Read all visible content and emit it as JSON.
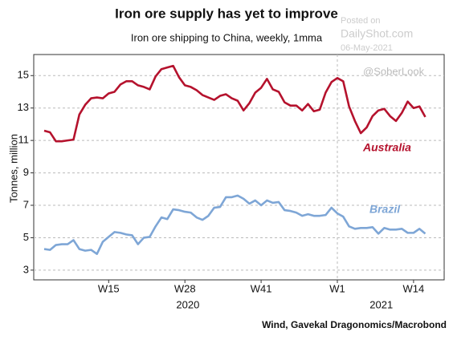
{
  "chart_data": {
    "type": "line",
    "title": "Iron ore supply has yet to improve",
    "subtitle": "Iron ore shipping to China, weekly, 1mma",
    "y_label": "Tonnes, million",
    "source": "Wind, Gavekal Dragonomics/Macrobond",
    "watermark": [
      "Posted on",
      "DailyShot.com",
      "06-May-2021"
    ],
    "handle": "@SoberLook",
    "categories": [
      null,
      null,
      null,
      null,
      null,
      null,
      null,
      null,
      null,
      null,
      null,
      "W15",
      null,
      null,
      null,
      null,
      null,
      null,
      null,
      null,
      null,
      null,
      null,
      null,
      "W28",
      null,
      null,
      null,
      null,
      null,
      null,
      null,
      null,
      null,
      null,
      null,
      null,
      "W41",
      null,
      null,
      null,
      null,
      null,
      null,
      null,
      null,
      null,
      null,
      null,
      null,
      "W1",
      null,
      null,
      null,
      null,
      null,
      null,
      null,
      null,
      null,
      null,
      null,
      null,
      "W14",
      null,
      null
    ],
    "groups": [
      {
        "label": "2020",
        "count": 50
      },
      {
        "label": "2021",
        "count": 16
      }
    ],
    "series": [
      {
        "name": "Australia",
        "color": "#b5122d",
        "values": [
          11.6,
          11.5,
          10.95,
          10.95,
          11.0,
          11.05,
          12.6,
          13.2,
          13.6,
          13.65,
          13.6,
          13.9,
          14.0,
          14.45,
          14.65,
          14.65,
          14.4,
          14.3,
          14.15,
          14.95,
          15.4,
          15.5,
          15.6,
          14.9,
          14.4,
          14.3,
          14.1,
          13.8,
          13.65,
          13.5,
          13.75,
          13.85,
          13.6,
          13.45,
          12.85,
          13.3,
          13.95,
          14.25,
          14.8,
          14.15,
          14.0,
          13.35,
          13.15,
          13.15,
          12.85,
          13.25,
          12.8,
          12.9,
          13.95,
          14.6,
          14.85,
          14.65,
          13.1,
          12.2,
          11.45,
          11.8,
          12.5,
          12.85,
          12.95,
          12.5,
          12.2,
          12.7,
          13.4,
          13.0,
          13.1,
          12.45
        ]
      },
      {
        "name": "Brazil",
        "color": "#7ea6d6",
        "values": [
          4.3,
          4.25,
          4.55,
          4.6,
          4.6,
          4.85,
          4.3,
          4.2,
          4.25,
          4.0,
          4.75,
          5.05,
          5.35,
          5.3,
          5.2,
          5.15,
          4.6,
          5.0,
          5.05,
          5.7,
          6.25,
          6.15,
          6.75,
          6.7,
          6.6,
          6.55,
          6.25,
          6.1,
          6.35,
          6.85,
          6.9,
          7.5,
          7.5,
          7.6,
          7.4,
          7.1,
          7.3,
          7.0,
          7.3,
          7.15,
          7.2,
          6.7,
          6.65,
          6.55,
          6.35,
          6.45,
          6.35,
          6.35,
          6.4,
          6.85,
          6.5,
          6.3,
          5.7,
          5.55,
          5.6,
          5.6,
          5.65,
          5.25,
          5.6,
          5.5,
          5.5,
          5.55,
          5.3,
          5.3,
          5.55,
          5.25
        ]
      }
    ],
    "ylim": [
      2.4,
      16.3
    ],
    "yticks": [
      3,
      5,
      7,
      9,
      11,
      13,
      15
    ],
    "grid": true
  }
}
